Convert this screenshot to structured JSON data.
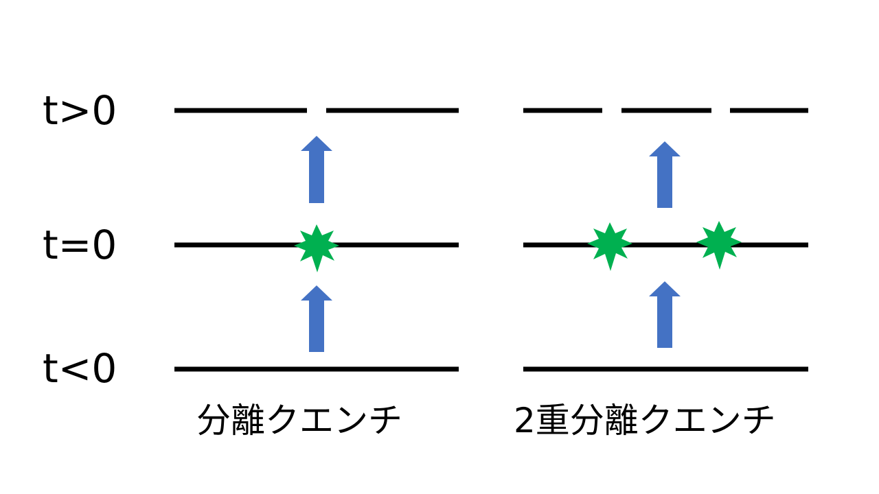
{
  "row_labels": {
    "after": "t>0",
    "at": "t=0",
    "before": "t<0"
  },
  "captions": {
    "left": "分離クエンチ",
    "right": "2重分離クエンチ"
  },
  "colors": {
    "line": "#000000",
    "arrow": "#4472c4",
    "burst": "#00b050"
  },
  "panels": [
    {
      "name": "single-quench",
      "caption": "分離クエンチ",
      "cuts_after": 1,
      "bursts_at": 1
    },
    {
      "name": "double-quench",
      "caption": "2重分離クエンチ",
      "cuts_after": 2,
      "bursts_at": 2
    }
  ]
}
